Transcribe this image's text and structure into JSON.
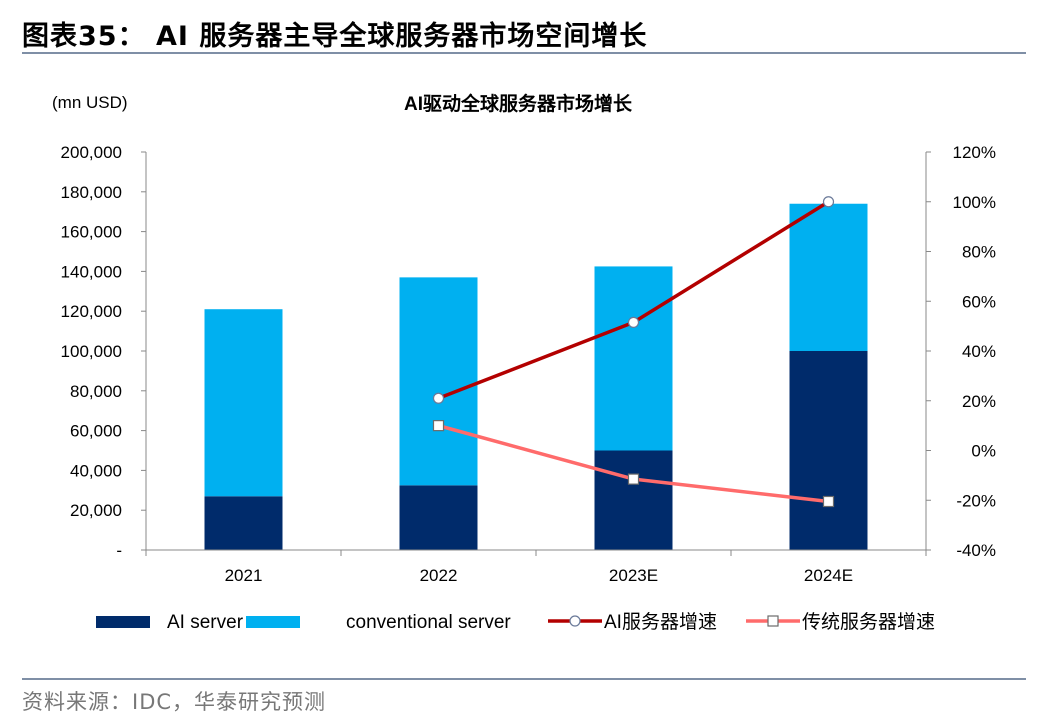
{
  "figure": {
    "title": "图表35： AI 服务器主导全球服务器市场空间增长",
    "source": "资料来源：IDC，华泰研究预测"
  },
  "colors": {
    "ai_server": "#002b6b",
    "conventional_server": "#00b0f0",
    "ai_growth": "#b30000",
    "conventional_growth": "#ff6b6b",
    "rule": "#7f8fa6"
  },
  "chart_data": {
    "type": "bar",
    "title": "AI驱动全球服务器市场增长",
    "unit_label": "(mn USD)",
    "categories": [
      "2021",
      "2022",
      "2023E",
      "2024E"
    ],
    "stacked": true,
    "series": [
      {
        "name": "AI server",
        "type": "bar",
        "axis": "left",
        "values": [
          27000,
          32500,
          50000,
          100000
        ]
      },
      {
        "name": "conventional server",
        "type": "bar",
        "axis": "left",
        "values": [
          94000,
          104500,
          92500,
          74000
        ]
      },
      {
        "name": "AI服务器增速",
        "type": "line",
        "axis": "right",
        "values": [
          null,
          0.21,
          0.515,
          1.0
        ]
      },
      {
        "name": "传统服务器增速",
        "type": "line",
        "axis": "right",
        "values": [
          null,
          0.1,
          -0.115,
          -0.205
        ]
      }
    ],
    "left_axis": {
      "ylim": [
        0,
        200000
      ],
      "ticks": [
        "-",
        "20,000",
        "40,000",
        "60,000",
        "80,000",
        "100,000",
        "120,000",
        "140,000",
        "160,000",
        "180,000",
        "200,000"
      ]
    },
    "right_axis": {
      "ylim": [
        -0.4,
        1.2
      ],
      "ticks": [
        "-40%",
        "-20%",
        "0%",
        "20%",
        "40%",
        "60%",
        "80%",
        "100%",
        "120%"
      ]
    },
    "grid": false,
    "legend_position": "bottom"
  }
}
